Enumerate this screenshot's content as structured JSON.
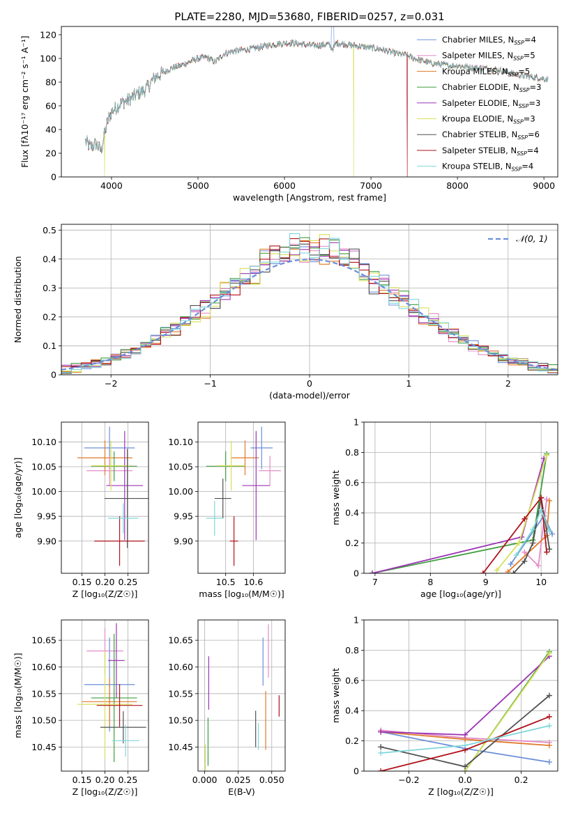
{
  "figure_title": "PLATE=2280, MJD=53680, FIBERID=0257, z=0.031",
  "colors": {
    "Chabrier MILES": "#6a8fdb",
    "Salpeter MILES": "#e48bc8",
    "Kroupa MILES": "#e07a28",
    "Chabrier ELODIE": "#3f9e3f",
    "Salpeter ELODIE": "#9b35b5",
    "Kroupa ELODIE": "#d7e05a",
    "Chabrier STELIB": "#505050",
    "Salpeter STELIB": "#b0121a",
    "Kroupa STELIB": "#7fd6da"
  },
  "chart_data": [
    {
      "id": "spectrum",
      "type": "line",
      "title": "PLATE=2280, MJD=53680, FIBERID=0257, z=0.031",
      "xlabel": "wavelength [Angstrom, rest frame]",
      "ylabel": "Flux [fλ10⁻¹⁷ erg cm⁻² s⁻¹ A⁻¹]",
      "xlim": [
        3420,
        9160
      ],
      "ylim": [
        0,
        127
      ],
      "xticks": [
        4000,
        5000,
        6000,
        7000,
        8000,
        9000
      ],
      "yticks": [
        0,
        20,
        40,
        60,
        80,
        100,
        120
      ],
      "legend_position": "right",
      "grid": false,
      "legend": [
        {
          "name": "Chabrier MILES",
          "sub": "SSP",
          "n": "4"
        },
        {
          "name": "Salpeter MILES",
          "sub": "SSP",
          "n": "5"
        },
        {
          "name": "Kroupa MILES",
          "sub": "SSP",
          "n": "5"
        },
        {
          "name": "Chabrier ELODIE",
          "sub": "SSP",
          "n": "3"
        },
        {
          "name": "Salpeter ELODIE",
          "sub": "SSP",
          "n": "3"
        },
        {
          "name": "Kroupa ELODIE",
          "sub": "SSP",
          "n": "3"
        },
        {
          "name": "Chabrier STELIB",
          "sub": "SSP",
          "n": "6"
        },
        {
          "name": "Salpeter STELIB",
          "sub": "SSP",
          "n": "4"
        },
        {
          "name": "Kroupa STELIB",
          "sub": "SSP",
          "n": "4"
        }
      ],
      "x_range": [
        3700,
        9050
      ],
      "envelope": [
        [
          3700,
          30
        ],
        [
          3760,
          25
        ],
        [
          3820,
          28
        ],
        [
          3880,
          22
        ],
        [
          3930,
          40
        ],
        [
          3960,
          48
        ],
        [
          4000,
          55
        ],
        [
          4100,
          62
        ],
        [
          4200,
          65
        ],
        [
          4300,
          70
        ],
        [
          4400,
          74
        ],
        [
          4500,
          84
        ],
        [
          4600,
          88
        ],
        [
          4700,
          92
        ],
        [
          4800,
          94
        ],
        [
          4900,
          97
        ],
        [
          5000,
          100
        ],
        [
          5100,
          101
        ],
        [
          5200,
          97
        ],
        [
          5300,
          104
        ],
        [
          5400,
          106
        ],
        [
          5500,
          107
        ],
        [
          5600,
          108
        ],
        [
          5700,
          109
        ],
        [
          5800,
          111
        ],
        [
          5900,
          112
        ],
        [
          6000,
          113
        ],
        [
          6100,
          113
        ],
        [
          6200,
          112
        ],
        [
          6300,
          111
        ],
        [
          6400,
          111
        ],
        [
          6500,
          112
        ],
        [
          6560,
          108
        ],
        [
          6600,
          113
        ],
        [
          6700,
          112
        ],
        [
          6800,
          111
        ],
        [
          6900,
          110
        ],
        [
          7000,
          109
        ],
        [
          7100,
          108
        ],
        [
          7200,
          106
        ],
        [
          7300,
          104
        ],
        [
          7400,
          103
        ],
        [
          7500,
          100
        ],
        [
          7600,
          98
        ],
        [
          7700,
          96
        ],
        [
          7800,
          95
        ],
        [
          7900,
          94
        ],
        [
          8000,
          94
        ],
        [
          8100,
          93
        ],
        [
          8200,
          92
        ],
        [
          8300,
          92
        ],
        [
          8400,
          91
        ],
        [
          8500,
          90
        ],
        [
          8600,
          88
        ],
        [
          8700,
          86
        ],
        [
          8800,
          85
        ],
        [
          8900,
          84
        ],
        [
          9000,
          83
        ],
        [
          9050,
          82
        ]
      ],
      "drops": [
        {
          "series": "Kroupa ELODIE",
          "x": 3920
        },
        {
          "series": "Kroupa ELODIE",
          "x": 6800
        },
        {
          "series": "Salpeter STELIB",
          "x": 7420
        }
      ]
    },
    {
      "id": "residuals",
      "type": "step",
      "xlabel": "(data-model)/error",
      "ylabel": "Normed distribution",
      "xlim": [
        -2.5,
        2.5
      ],
      "ylim": [
        0,
        0.52
      ],
      "xticks": [
        -2,
        -1,
        0,
        1,
        2
      ],
      "yticks": [
        0.0,
        0.1,
        0.2,
        0.3,
        0.4,
        0.5
      ],
      "legend": [
        {
          "name": "𝒩(0, 1)",
          "style": "dashed",
          "color": "#6a8fdb"
        }
      ],
      "legend_position": "top-right",
      "grid": true,
      "bin_width": 0.1,
      "bin_start": -2.5,
      "reference_gaussian": {
        "mean": 0,
        "sigma": 1
      }
    },
    {
      "id": "age_vs_Z",
      "type": "errorbar",
      "xlabel": "Z [log₁₀(Z/Z☉)]",
      "ylabel": "age  [log₁₀(age/yr)]",
      "xlim": [
        0.105,
        0.295
      ],
      "ylim": [
        9.835,
        10.14
      ],
      "xticks": [
        0.15,
        0.2,
        0.25
      ],
      "xticklabels": [
        "0.15",
        "0.20",
        "0.25"
      ],
      "yticks": [
        9.9,
        9.95,
        10.0,
        10.05,
        10.1
      ],
      "yticklabels": [
        "9.90",
        "9.95",
        "10.00",
        "10.05",
        "10.10"
      ],
      "grid": true,
      "points": [
        {
          "series": "Chabrier MILES",
          "x": 0.21,
          "xerr": 0.055,
          "y": 10.088,
          "yerr": 0.043
        },
        {
          "series": "Salpeter MILES",
          "x": 0.21,
          "xerr": 0.05,
          "y": 10.042,
          "yerr": 0.03
        },
        {
          "series": "Kroupa MILES",
          "x": 0.2,
          "xerr": 0.06,
          "y": 10.068,
          "yerr": 0.035
        },
        {
          "series": "Chabrier ELODIE",
          "x": 0.22,
          "xerr": 0.05,
          "y": 10.051,
          "yerr": 0.03
        },
        {
          "series": "Salpeter ELODIE",
          "x": 0.243,
          "xerr": 0.04,
          "y": 10.012,
          "yerr": 0.11
        },
        {
          "series": "Kroupa ELODIE",
          "x": 0.213,
          "xerr": 0.04,
          "y": 10.052,
          "yerr": 0.05
        },
        {
          "series": "Chabrier STELIB",
          "x": 0.249,
          "xerr": 0.05,
          "y": 9.986,
          "yerr": 0.1
        },
        {
          "series": "Salpeter STELIB",
          "x": 0.232,
          "xerr": 0.055,
          "y": 9.9,
          "yerr": 0.05
        },
        {
          "series": "Kroupa STELIB",
          "x": 0.24,
          "xerr": 0.033,
          "y": 9.946,
          "yerr": 0.03
        }
      ]
    },
    {
      "id": "age_vs_mass",
      "type": "errorbar",
      "xlabel": "mass [log₁₀(M/M☉)]",
      "ylabel": "",
      "xlim": [
        10.4,
        10.715
      ],
      "ylim": [
        9.835,
        10.14
      ],
      "xticks": [
        10.5,
        10.6
      ],
      "xticklabels": [
        "10.5",
        "10.6"
      ],
      "yticks": [
        9.9,
        9.95,
        10.0,
        10.05,
        10.1
      ],
      "yticklabels": [
        "9.90",
        "9.95",
        "10.00",
        "10.05",
        "10.10"
      ],
      "grid": true,
      "points": [
        {
          "series": "Chabrier MILES",
          "x": 10.63,
          "xerr": 0.04,
          "y": 10.088,
          "yerr": 0.043
        },
        {
          "series": "Salpeter MILES",
          "x": 10.66,
          "xerr": 0.04,
          "y": 10.042,
          "yerr": 0.03
        },
        {
          "series": "Kroupa MILES",
          "x": 10.57,
          "xerr": 0.05,
          "y": 10.068,
          "yerr": 0.035
        },
        {
          "series": "Chabrier ELODIE",
          "x": 10.5,
          "xerr": 0.07,
          "y": 10.051,
          "yerr": 0.03
        },
        {
          "series": "Salpeter ELODIE",
          "x": 10.61,
          "xerr": 0.05,
          "y": 10.012,
          "yerr": 0.11
        },
        {
          "series": "Kroupa ELODIE",
          "x": 10.52,
          "xerr": 0.05,
          "y": 10.052,
          "yerr": 0.05
        },
        {
          "series": "Chabrier STELIB",
          "x": 10.49,
          "xerr": 0.03,
          "y": 9.986,
          "yerr": 0.04
        },
        {
          "series": "Salpeter STELIB",
          "x": 10.53,
          "xerr": 0.015,
          "y": 9.9,
          "yerr": 0.05
        },
        {
          "series": "Kroupa STELIB",
          "x": 10.46,
          "xerr": 0.03,
          "y": 9.946,
          "yerr": 0.035
        }
      ]
    },
    {
      "id": "weight_vs_age",
      "type": "line",
      "xlabel": "age  [log₁₀(age/yr)]",
      "ylabel": "mass weight",
      "xlim": [
        6.8,
        10.3
      ],
      "ylim": [
        0,
        1.0
      ],
      "xticks": [
        7,
        8,
        9,
        10
      ],
      "yticks": [
        0.0,
        0.2,
        0.4,
        0.6,
        0.8,
        1.0
      ],
      "grid": true,
      "series": [
        {
          "name": "Chabrier MILES",
          "x": [
            9.45,
            10.05,
            10.2
          ],
          "y": [
            0.06,
            0.38,
            0.26
          ]
        },
        {
          "name": "Salpeter MILES",
          "x": [
            9.7,
            9.95,
            10.1
          ],
          "y": [
            0.14,
            0.05,
            0.49
          ]
        },
        {
          "name": "Kroupa MILES",
          "x": [
            9.4,
            10.1,
            10.15
          ],
          "y": [
            0.01,
            0.25,
            0.48
          ]
        },
        {
          "name": "Chabrier ELODIE",
          "x": [
            6.95,
            9.85,
            10.1
          ],
          "y": [
            0.0,
            0.22,
            0.79
          ]
        },
        {
          "name": "Salpeter ELODIE",
          "x": [
            6.95,
            9.65,
            10.05
          ],
          "y": [
            0.0,
            0.24,
            0.76
          ]
        },
        {
          "name": "Kroupa ELODIE",
          "x": [
            9.2,
            9.6,
            10.1
          ],
          "y": [
            0.02,
            0.2,
            0.78
          ]
        },
        {
          "name": "Chabrier STELIB",
          "x": [
            9.5,
            9.7,
            9.85,
            10.0,
            10.1,
            10.15
          ],
          "y": [
            0.0,
            0.08,
            0.2,
            0.5,
            0.28,
            0.16
          ]
        },
        {
          "name": "Salpeter STELIB",
          "x": [
            8.95,
            9.7,
            10.0,
            10.1
          ],
          "y": [
            0.0,
            0.36,
            0.5,
            0.14
          ]
        },
        {
          "name": "Kroupa STELIB",
          "x": [
            9.55,
            9.85,
            10.0,
            10.15
          ],
          "y": [
            0.12,
            0.29,
            0.42,
            0.28
          ]
        }
      ]
    },
    {
      "id": "mass_vs_Z",
      "type": "errorbar",
      "xlabel": "Z [log₁₀(Z/Z☉)]",
      "ylabel": "mass [log₁₀(M/M☉)]",
      "xlim": [
        0.105,
        0.295
      ],
      "ylim": [
        10.405,
        10.688
      ],
      "xticks": [
        0.15,
        0.2,
        0.25
      ],
      "xticklabels": [
        "0.15",
        "0.20",
        "0.25"
      ],
      "yticks": [
        10.45,
        10.5,
        10.55,
        10.6,
        10.65
      ],
      "yticklabels": [
        "10.45",
        "10.50",
        "10.55",
        "10.60",
        "10.65"
      ],
      "grid": true,
      "points": [
        {
          "series": "Chabrier MILES",
          "x": 0.21,
          "xerr": 0.055,
          "y": 10.567,
          "yerr": 0.088
        },
        {
          "series": "Salpeter MILES",
          "x": 0.2,
          "xerr": 0.04,
          "y": 10.63,
          "yerr": 0.043
        },
        {
          "series": "Kroupa MILES",
          "x": 0.21,
          "xerr": 0.06,
          "y": 10.535,
          "yerr": 0.045
        },
        {
          "series": "Chabrier ELODIE",
          "x": 0.22,
          "xerr": 0.05,
          "y": 10.542,
          "yerr": 0.12
        },
        {
          "series": "Salpeter ELODIE",
          "x": 0.225,
          "xerr": 0.018,
          "y": 10.612,
          "yerr": 0.07
        },
        {
          "series": "Kroupa ELODIE",
          "x": 0.2,
          "xerr": 0.06,
          "y": 10.53,
          "yerr": 0.1
        },
        {
          "series": "Chabrier STELIB",
          "x": 0.24,
          "xerr": 0.05,
          "y": 10.487,
          "yerr": 0.03
        },
        {
          "series": "Salpeter STELIB",
          "x": 0.232,
          "xerr": 0.05,
          "y": 10.528,
          "yerr": 0.04
        },
        {
          "series": "Kroupa STELIB",
          "x": 0.245,
          "xerr": 0.03,
          "y": 10.462,
          "yerr": 0.03
        }
      ]
    },
    {
      "id": "mass_vs_EBV",
      "type": "errorbar",
      "xlabel": "E(B-V)",
      "ylabel": "",
      "xlim": [
        -0.005,
        0.06
      ],
      "ylim": [
        10.405,
        10.688
      ],
      "xticks": [
        0.0,
        0.025,
        0.05
      ],
      "xticklabels": [
        "0.000",
        "0.025",
        "0.050"
      ],
      "yticks": [
        10.45,
        10.5,
        10.55,
        10.6,
        10.65
      ],
      "yticklabels": [
        "10.45",
        "10.50",
        "10.55",
        "10.60",
        "10.65"
      ],
      "grid": true,
      "points": [
        {
          "series": "Chabrier MILES",
          "x": 0.0435,
          "xerr": 0,
          "y": 10.61,
          "yerr": 0.045
        },
        {
          "series": "Salpeter MILES",
          "x": 0.0475,
          "xerr": 0,
          "y": 10.63,
          "yerr": 0.05
        },
        {
          "series": "Kroupa MILES",
          "x": 0.0455,
          "xerr": 0,
          "y": 10.5,
          "yerr": 0.055
        },
        {
          "series": "Chabrier ELODIE",
          "x": 0.0025,
          "xerr": 0,
          "y": 10.46,
          "yerr": 0.045
        },
        {
          "series": "Salpeter ELODIE",
          "x": 0.003,
          "xerr": 0,
          "y": 10.57,
          "yerr": 0.05
        },
        {
          "series": "Kroupa ELODIE",
          "x": 0.0005,
          "xerr": 0,
          "y": 10.43,
          "yerr": 0.025
        },
        {
          "series": "Chabrier STELIB",
          "x": 0.038,
          "xerr": 0,
          "y": 10.484,
          "yerr": 0.034
        },
        {
          "series": "Salpeter STELIB",
          "x": 0.0555,
          "xerr": 0,
          "y": 10.527,
          "yerr": 0.02
        },
        {
          "series": "Kroupa STELIB",
          "x": 0.04,
          "xerr": 0,
          "y": 10.47,
          "yerr": 0.025
        }
      ]
    },
    {
      "id": "weight_vs_Z",
      "type": "line",
      "xlabel": "Z [log₁₀(Z/Z☉)]",
      "ylabel": "mass weight",
      "xlim": [
        -0.36,
        0.33
      ],
      "ylim": [
        0,
        1.0
      ],
      "xticks": [
        -0.2,
        0.0,
        0.2
      ],
      "xticklabels": [
        "−0.2",
        "0.0",
        "0.2"
      ],
      "yticks": [
        0.0,
        0.2,
        0.4,
        0.6,
        0.8,
        1.0
      ],
      "grid": true,
      "series": [
        {
          "name": "Chabrier MILES",
          "x": [
            -0.3,
            0.0,
            0.3
          ],
          "y": [
            0.26,
            0.15,
            0.06
          ]
        },
        {
          "name": "Salpeter MILES",
          "x": [
            -0.3,
            0.0,
            0.3
          ],
          "y": [
            0.27,
            0.22,
            0.19
          ]
        },
        {
          "name": "Kroupa MILES",
          "x": [
            -0.3,
            0.0,
            0.3
          ],
          "y": [
            0.26,
            0.21,
            0.17
          ]
        },
        {
          "name": "Chabrier ELODIE",
          "x": [
            0.0,
            0.3
          ],
          "y": [
            0.0,
            0.79
          ]
        },
        {
          "name": "Salpeter ELODIE",
          "x": [
            -0.3,
            0.0,
            0.3
          ],
          "y": [
            0.26,
            0.24,
            0.76
          ]
        },
        {
          "name": "Kroupa ELODIE",
          "x": [
            0.0,
            0.3
          ],
          "y": [
            0.0,
            0.78
          ]
        },
        {
          "name": "Chabrier STELIB",
          "x": [
            -0.3,
            0.0,
            0.3
          ],
          "y": [
            0.16,
            0.03,
            0.5
          ]
        },
        {
          "name": "Salpeter STELIB",
          "x": [
            -0.3,
            0.0,
            0.3
          ],
          "y": [
            0.0,
            0.14,
            0.36
          ]
        },
        {
          "name": "Kroupa STELIB",
          "x": [
            -0.3,
            0.0,
            0.3
          ],
          "y": [
            0.12,
            0.17,
            0.3
          ]
        }
      ]
    }
  ]
}
